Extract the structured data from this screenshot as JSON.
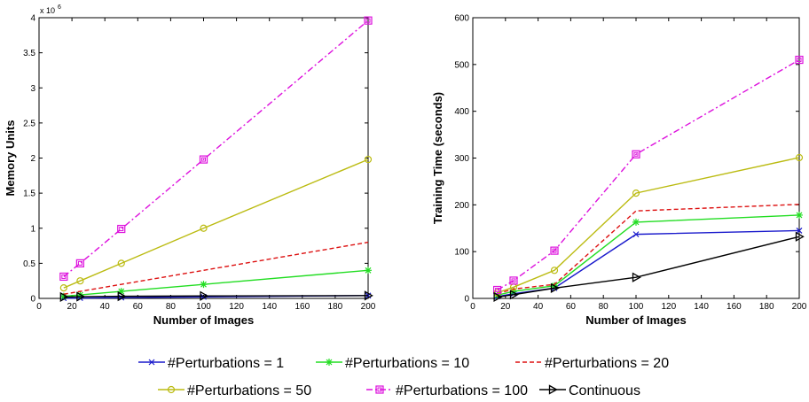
{
  "chart_data": [
    {
      "type": "line",
      "xlabel": "Number of Images",
      "ylabel": "Memory Units",
      "y_multiplier_label": "x 10",
      "y_multiplier_exp": "6",
      "xlim": [
        0,
        200
      ],
      "ylim": [
        0,
        4
      ],
      "xticks": [
        0,
        20,
        40,
        60,
        80,
        100,
        120,
        140,
        160,
        180,
        200
      ],
      "yticks": [
        0,
        0.5,
        1,
        1.5,
        2,
        2.5,
        3,
        3.5,
        4
      ],
      "ytick_labels": [
        "0",
        "0.5",
        "1",
        "1.5",
        "2",
        "2.5",
        "3",
        "3.5",
        "4"
      ],
      "grid": false,
      "x": [
        15,
        25,
        50,
        100,
        200
      ],
      "series": [
        {
          "name": "#Perturbations = 1",
          "values": [
            0.004,
            0.006,
            0.012,
            0.022,
            0.04
          ]
        },
        {
          "name": "#Perturbations = 10",
          "values": [
            0.03,
            0.05,
            0.1,
            0.2,
            0.4
          ]
        },
        {
          "name": "#Perturbations = 20",
          "values": [
            0.06,
            0.1,
            0.2,
            0.4,
            0.8
          ]
        },
        {
          "name": "#Perturbations = 50",
          "values": [
            0.15,
            0.25,
            0.5,
            1.0,
            1.98
          ]
        },
        {
          "name": "#Perturbations = 100",
          "values": [
            0.31,
            0.5,
            0.99,
            1.98,
            3.96
          ]
        },
        {
          "name": "Continuous",
          "values": [
            0.02,
            0.025,
            0.03,
            0.035,
            0.04
          ]
        }
      ]
    },
    {
      "type": "line",
      "xlabel": "Number of Images",
      "ylabel": "Training Time (seconds)",
      "xlim": [
        0,
        200
      ],
      "ylim": [
        0,
        600
      ],
      "xticks": [
        0,
        20,
        40,
        60,
        80,
        100,
        120,
        140,
        160,
        180,
        200
      ],
      "yticks": [
        0,
        100,
        200,
        300,
        400,
        500,
        600
      ],
      "ytick_labels": [
        "0",
        "100",
        "200",
        "300",
        "400",
        "500",
        "600"
      ],
      "grid": false,
      "x": [
        15,
        25,
        50,
        100,
        200
      ],
      "series": [
        {
          "name": "#Perturbations = 1",
          "values": [
            4,
            10,
            22,
            137,
            145
          ]
        },
        {
          "name": "#Perturbations = 10",
          "values": [
            7,
            15,
            27,
            163,
            178
          ]
        },
        {
          "name": "#Perturbations = 20",
          "values": [
            10,
            20,
            30,
            187,
            201
          ]
        },
        {
          "name": "#Perturbations = 50",
          "values": [
            12,
            24,
            60,
            225,
            301
          ]
        },
        {
          "name": "#Perturbations = 100",
          "values": [
            18,
            38,
            102,
            308,
            510
          ]
        },
        {
          "name": "Continuous",
          "values": [
            3,
            8,
            22,
            45,
            132
          ]
        }
      ]
    }
  ],
  "legend": {
    "placement": "bottom",
    "entries": [
      {
        "label": "#Perturbations = 1",
        "color": "#1a1acc",
        "marker": "x",
        "dash": ""
      },
      {
        "label": "#Perturbations = 10",
        "color": "#22dd22",
        "marker": "star",
        "dash": ""
      },
      {
        "label": "#Perturbations = 20",
        "color": "#dd1111",
        "marker": "none",
        "dash": "5,3"
      },
      {
        "label": "#Perturbations = 50",
        "color": "#bbbb11",
        "marker": "circle",
        "dash": ""
      },
      {
        "label": "#Perturbations = 100",
        "color": "#dd11dd",
        "marker": "square",
        "dash": "7,3,2,3"
      },
      {
        "label": "Continuous",
        "color": "#000000",
        "marker": "triangle",
        "dash": ""
      }
    ]
  }
}
